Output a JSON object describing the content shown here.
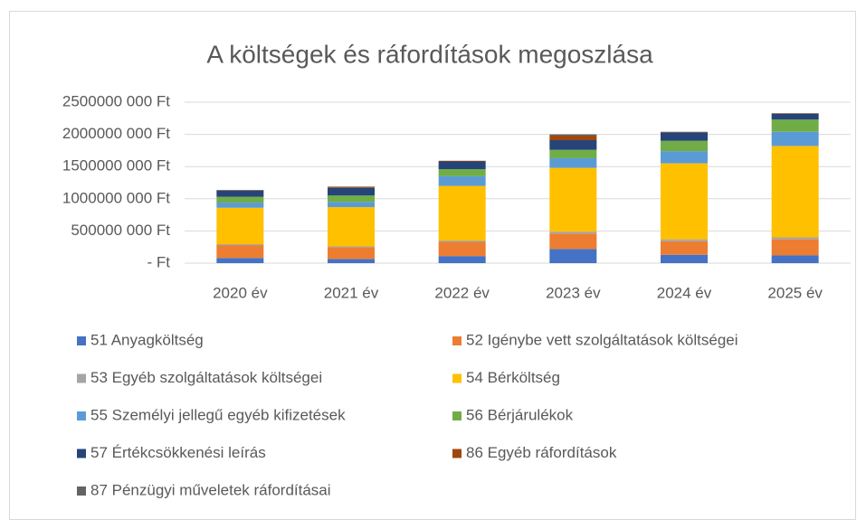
{
  "chart_data": {
    "type": "stacked_bar",
    "title": "A költségek és ráfordítások megoszlása",
    "categories": [
      "2020 év",
      "2021 év",
      "2022 év",
      "2023 év",
      "2024 év",
      "2025 év"
    ],
    "series": [
      {
        "name": "51 Anyagköltség",
        "color": "#4472c4",
        "values": [
          80000000,
          65000000,
          110000000,
          220000000,
          130000000,
          120000000
        ]
      },
      {
        "name": "52 Igénybe vett szolgáltatások költségei",
        "color": "#ed7d31",
        "values": [
          200000000,
          180000000,
          220000000,
          240000000,
          210000000,
          250000000
        ]
      },
      {
        "name": "53 Egyéb szolgáltatások költségei",
        "color": "#a5a5a5",
        "values": [
          15000000,
          15000000,
          20000000,
          30000000,
          30000000,
          30000000
        ]
      },
      {
        "name": "54 Bérköltség",
        "color": "#ffc000",
        "values": [
          565000000,
          610000000,
          850000000,
          990000000,
          1180000000,
          1420000000
        ]
      },
      {
        "name": "55 Személyi jellegű egyéb kifizetések",
        "color": "#5b9bd5",
        "values": [
          80000000,
          80000000,
          150000000,
          150000000,
          190000000,
          220000000
        ]
      },
      {
        "name": "56 Bérjárulékok",
        "color": "#70ad47",
        "values": [
          90000000,
          100000000,
          110000000,
          130000000,
          160000000,
          190000000
        ]
      },
      {
        "name": "57 Értékcsökkenési leírás",
        "color": "#264478",
        "values": [
          100000000,
          120000000,
          120000000,
          150000000,
          130000000,
          90000000
        ]
      },
      {
        "name": "86 Egyéb ráfordítások",
        "color": "#9e480e",
        "values": [
          5000000,
          15000000,
          10000000,
          70000000,
          5000000,
          5000000
        ]
      },
      {
        "name": "87 Pénzügyi műveletek ráfordításai",
        "color": "#636363",
        "values": [
          0,
          5000000,
          0,
          20000000,
          5000000,
          5000000
        ]
      }
    ],
    "ylim": [
      0,
      2500000000
    ],
    "yticks": [
      {
        "value": 0,
        "label": "-   Ft"
      },
      {
        "value": 500000000,
        "label": "500000 000 Ft"
      },
      {
        "value": 1000000000,
        "label": "1000000 000 Ft"
      },
      {
        "value": 1500000000,
        "label": "1500000 000 Ft"
      },
      {
        "value": 2000000000,
        "label": "2000000 000 Ft"
      },
      {
        "value": 2500000000,
        "label": "2500000 000 Ft"
      }
    ],
    "grid": true,
    "legend": "bottom"
  }
}
